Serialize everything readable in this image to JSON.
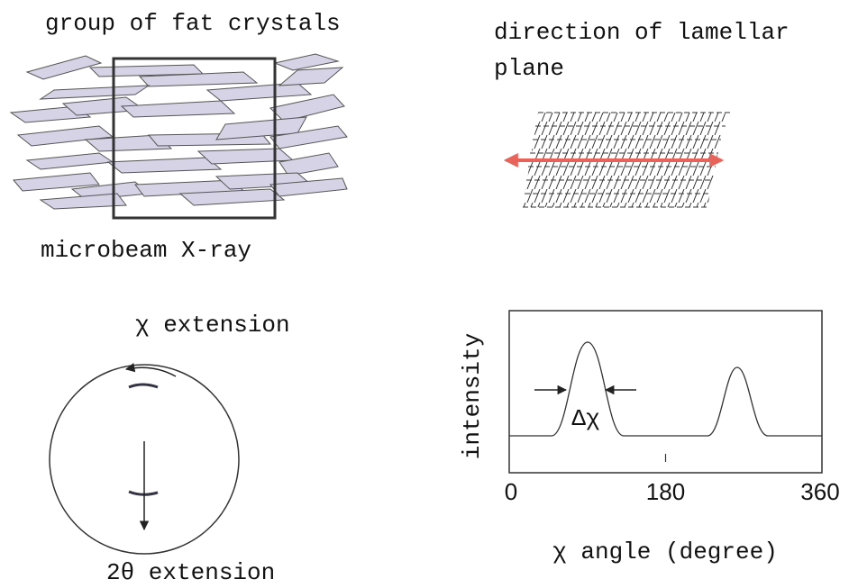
{
  "top_left": {
    "title": "group of fat crystals",
    "caption": "microbeam X-ray"
  },
  "top_right": {
    "title_lines": [
      "direction of lamellar",
      "plane"
    ]
  },
  "bottom_left": {
    "top_label": "χ extension",
    "bottom_label": "2θ extension"
  },
  "bottom_right": {
    "y_label": "intensity",
    "width_label": "Δχ",
    "xticks": [
      0,
      180,
      360
    ],
    "x_label": "χ angle (degree)"
  }
}
